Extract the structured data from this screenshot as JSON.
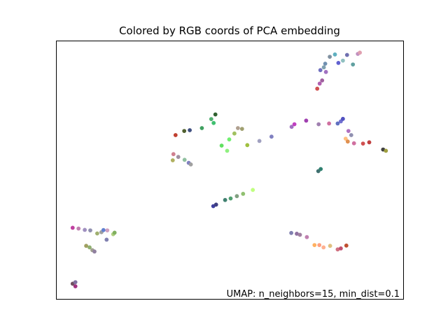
{
  "chart_data": {
    "type": "scatter",
    "title": "Colored by RGB coords of PCA embedding",
    "annotation": "UMAP: n_neighbors=15, min_dist=0.1",
    "xlabel": "",
    "ylabel": "",
    "xlim": [
      0,
      100
    ],
    "ylim": [
      0,
      100
    ],
    "grid": false,
    "axes_ticks": "none",
    "points": [
      {
        "x": 4.6,
        "y": 27.6,
        "color": "#c040a0"
      },
      {
        "x": 6.3,
        "y": 27.3,
        "color": "#c080b0"
      },
      {
        "x": 8.1,
        "y": 26.8,
        "color": "#a090c0"
      },
      {
        "x": 9.7,
        "y": 26.6,
        "color": "#9090b0"
      },
      {
        "x": 11.7,
        "y": 25.4,
        "color": "#a0b070"
      },
      {
        "x": 12.9,
        "y": 25.9,
        "color": "#a0a0a0"
      },
      {
        "x": 13.5,
        "y": 26.7,
        "color": "#6080d0"
      },
      {
        "x": 14.6,
        "y": 26.6,
        "color": "#d0a0c0"
      },
      {
        "x": 16.3,
        "y": 25.1,
        "color": "#b0d080"
      },
      {
        "x": 16.7,
        "y": 25.7,
        "color": "#80b060"
      },
      {
        "x": 14.4,
        "y": 23.0,
        "color": "#8080b0"
      },
      {
        "x": 8.5,
        "y": 20.6,
        "color": "#a0a060"
      },
      {
        "x": 9.5,
        "y": 20.0,
        "color": "#90b070"
      },
      {
        "x": 10.3,
        "y": 18.9,
        "color": "#a0a090"
      },
      {
        "x": 10.9,
        "y": 18.4,
        "color": "#9080a0"
      },
      {
        "x": 4.6,
        "y": 5.9,
        "color": "#705060"
      },
      {
        "x": 5.4,
        "y": 6.5,
        "color": "#8070a0"
      },
      {
        "x": 5.4,
        "y": 4.9,
        "color": "#a03080"
      },
      {
        "x": 34.3,
        "y": 63.6,
        "color": "#c04030"
      },
      {
        "x": 36.8,
        "y": 65.2,
        "color": "#506030"
      },
      {
        "x": 38.4,
        "y": 65.5,
        "color": "#405080"
      },
      {
        "x": 41.9,
        "y": 66.3,
        "color": "#40a060"
      },
      {
        "x": 44.6,
        "y": 69.8,
        "color": "#50b070"
      },
      {
        "x": 45.3,
        "y": 68.3,
        "color": "#40c070"
      },
      {
        "x": 45.8,
        "y": 71.6,
        "color": "#306030"
      },
      {
        "x": 33.7,
        "y": 56.2,
        "color": "#d08090"
      },
      {
        "x": 35.1,
        "y": 55.1,
        "color": "#a090a0"
      },
      {
        "x": 33.5,
        "y": 53.8,
        "color": "#b0b060"
      },
      {
        "x": 36.9,
        "y": 54.0,
        "color": "#90c0a0"
      },
      {
        "x": 38.1,
        "y": 52.8,
        "color": "#8080c0"
      },
      {
        "x": 38.7,
        "y": 52.2,
        "color": "#a0a0a0"
      },
      {
        "x": 47.6,
        "y": 59.5,
        "color": "#60e060"
      },
      {
        "x": 49.8,
        "y": 61.9,
        "color": "#70f070"
      },
      {
        "x": 51.3,
        "y": 64.2,
        "color": "#a0c060"
      },
      {
        "x": 52.3,
        "y": 66.3,
        "color": "#b0a090"
      },
      {
        "x": 53.5,
        "y": 66.0,
        "color": "#a0a070"
      },
      {
        "x": 49.2,
        "y": 57.5,
        "color": "#90f080"
      },
      {
        "x": 55.0,
        "y": 59.7,
        "color": "#a0c040"
      },
      {
        "x": 58.5,
        "y": 61.3,
        "color": "#a0a0c0"
      },
      {
        "x": 62.0,
        "y": 63.0,
        "color": "#8080c0"
      },
      {
        "x": 45.2,
        "y": 36.0,
        "color": "#4040a0"
      },
      {
        "x": 46.0,
        "y": 36.6,
        "color": "#404080"
      },
      {
        "x": 48.6,
        "y": 38.4,
        "color": "#408070"
      },
      {
        "x": 50.2,
        "y": 39.0,
        "color": "#50a070"
      },
      {
        "x": 52.0,
        "y": 39.9,
        "color": "#80a080"
      },
      {
        "x": 53.8,
        "y": 40.8,
        "color": "#90c070"
      },
      {
        "x": 56.6,
        "y": 42.3,
        "color": "#c0ff80"
      },
      {
        "x": 67.8,
        "y": 66.8,
        "color": "#a070c0"
      },
      {
        "x": 68.6,
        "y": 67.8,
        "color": "#c040c0"
      },
      {
        "x": 72.0,
        "y": 69.2,
        "color": "#a040b0"
      },
      {
        "x": 75.6,
        "y": 67.8,
        "color": "#a080b0"
      },
      {
        "x": 78.6,
        "y": 68.1,
        "color": "#d070a0"
      },
      {
        "x": 81.1,
        "y": 68.1,
        "color": "#6070c0"
      },
      {
        "x": 82.0,
        "y": 68.9,
        "color": "#7070d0"
      },
      {
        "x": 82.6,
        "y": 69.9,
        "color": "#5050c0"
      },
      {
        "x": 84.2,
        "y": 65.2,
        "color": "#b070c0"
      },
      {
        "x": 85.0,
        "y": 63.6,
        "color": "#9090b0"
      },
      {
        "x": 83.4,
        "y": 62.2,
        "color": "#ffc080"
      },
      {
        "x": 84.0,
        "y": 61.1,
        "color": "#e09050"
      },
      {
        "x": 85.8,
        "y": 60.4,
        "color": "#d070a0"
      },
      {
        "x": 88.4,
        "y": 60.3,
        "color": "#d05050"
      },
      {
        "x": 90.2,
        "y": 60.8,
        "color": "#c04040"
      },
      {
        "x": 94.2,
        "y": 58.0,
        "color": "#404040"
      },
      {
        "x": 95.0,
        "y": 57.5,
        "color": "#a0a040"
      },
      {
        "x": 75.5,
        "y": 49.6,
        "color": "#407070"
      },
      {
        "x": 76.2,
        "y": 50.4,
        "color": "#308070"
      },
      {
        "x": 78.8,
        "y": 94.0,
        "color": "#8090a0"
      },
      {
        "x": 80.3,
        "y": 94.9,
        "color": "#60b0c0"
      },
      {
        "x": 82.6,
        "y": 92.5,
        "color": "#90c0c0"
      },
      {
        "x": 83.8,
        "y": 94.7,
        "color": "#7070b0"
      },
      {
        "x": 86.9,
        "y": 95.1,
        "color": "#c090c0"
      },
      {
        "x": 87.5,
        "y": 95.6,
        "color": "#e0a0b0"
      },
      {
        "x": 85.5,
        "y": 91.0,
        "color": "#60a0a0"
      },
      {
        "x": 81.3,
        "y": 91.6,
        "color": "#6060d0"
      },
      {
        "x": 77.5,
        "y": 91.3,
        "color": "#7090b0"
      },
      {
        "x": 77.1,
        "y": 89.9,
        "color": "#80a0b0"
      },
      {
        "x": 76.1,
        "y": 88.8,
        "color": "#7070c0"
      },
      {
        "x": 77.7,
        "y": 88.1,
        "color": "#a070c0"
      },
      {
        "x": 76.6,
        "y": 84.8,
        "color": "#a060a0"
      },
      {
        "x": 75.9,
        "y": 83.6,
        "color": "#b060b0"
      },
      {
        "x": 75.2,
        "y": 81.6,
        "color": "#d05050"
      },
      {
        "x": 67.7,
        "y": 25.6,
        "color": "#8080b0"
      },
      {
        "x": 69.3,
        "y": 25.3,
        "color": "#9070a0"
      },
      {
        "x": 70.2,
        "y": 24.9,
        "color": "#a080a0"
      },
      {
        "x": 72.2,
        "y": 24.0,
        "color": "#c080b0"
      },
      {
        "x": 74.4,
        "y": 20.9,
        "color": "#ffb060"
      },
      {
        "x": 75.8,
        "y": 20.9,
        "color": "#ffa080"
      },
      {
        "x": 77.0,
        "y": 20.0,
        "color": "#ffb090"
      },
      {
        "x": 78.9,
        "y": 20.6,
        "color": "#e0c080"
      },
      {
        "x": 81.1,
        "y": 19.2,
        "color": "#d07080"
      },
      {
        "x": 82.0,
        "y": 19.6,
        "color": "#c05070"
      },
      {
        "x": 83.6,
        "y": 20.7,
        "color": "#c05030"
      }
    ]
  }
}
